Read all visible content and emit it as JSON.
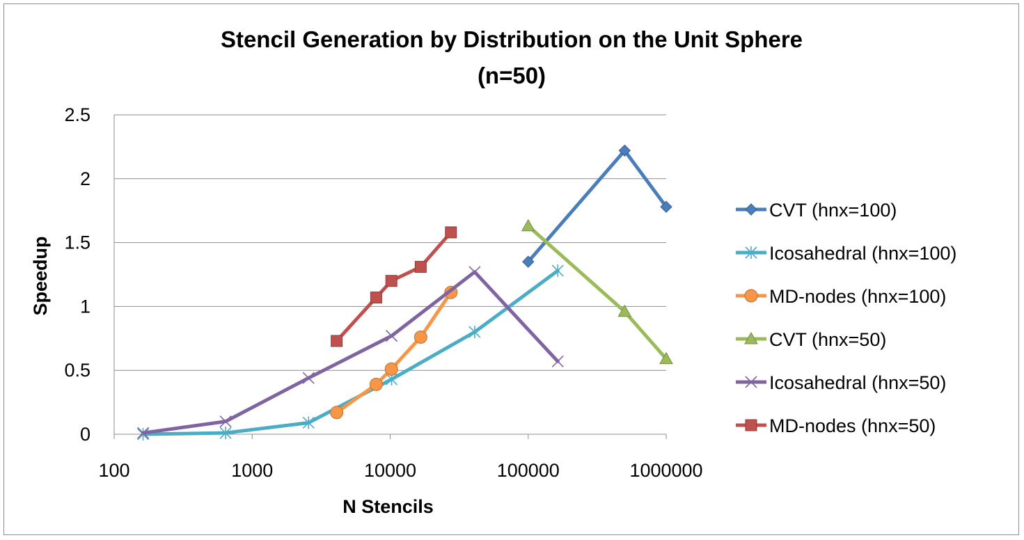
{
  "chart_data": {
    "type": "line",
    "title_line1": "Stencil Generation by Distribution on the Unit Sphere",
    "title_line2": "(n=50)",
    "xlabel": "N Stencils",
    "ylabel": "Speedup",
    "x_scale": "log",
    "xlim": [
      100,
      1000000
    ],
    "ylim": [
      0,
      2.5
    ],
    "x_ticks": [
      "100",
      "1000",
      "10000",
      "100000",
      "1000000"
    ],
    "y_ticks": [
      "0",
      "0.5",
      "1",
      "1.5",
      "2",
      "2.5"
    ],
    "grid": "horizontal",
    "legend_position": "right",
    "series": [
      {
        "name": "CVT (hnx=100)",
        "color": "#4a7ebb",
        "marker": "diamond",
        "x": [
          100000,
          500000,
          1000000
        ],
        "y": [
          1.35,
          2.22,
          1.78
        ]
      },
      {
        "name": "Icosahedral (hnx=100)",
        "color": "#4bacc6",
        "marker": "asterisk",
        "x": [
          162,
          642,
          2562,
          10242,
          40962,
          163842
        ],
        "y": [
          0.0,
          0.01,
          0.09,
          0.43,
          0.8,
          1.28
        ]
      },
      {
        "name": "MD-nodes (hnx=100)",
        "color": "#f79646",
        "marker": "circle",
        "x": [
          4096,
          7921,
          10201,
          16641,
          27556
        ],
        "y": [
          0.17,
          0.39,
          0.51,
          0.76,
          1.11
        ]
      },
      {
        "name": "CVT (hnx=50)",
        "color": "#9bbb59",
        "marker": "triangle",
        "x": [
          100000,
          500000,
          1000000
        ],
        "y": [
          1.63,
          0.96,
          0.59
        ]
      },
      {
        "name": "Icosahedral (hnx=50)",
        "color": "#8064a2",
        "marker": "x",
        "x": [
          162,
          642,
          2562,
          10242,
          40962,
          163842
        ],
        "y": [
          0.01,
          0.1,
          0.44,
          0.77,
          1.27,
          0.57
        ]
      },
      {
        "name": "MD-nodes (hnx=50)",
        "color": "#c0504d",
        "marker": "square",
        "x": [
          4096,
          7921,
          10201,
          16641,
          27556
        ],
        "y": [
          0.73,
          1.07,
          1.2,
          1.31,
          1.58
        ]
      }
    ]
  }
}
